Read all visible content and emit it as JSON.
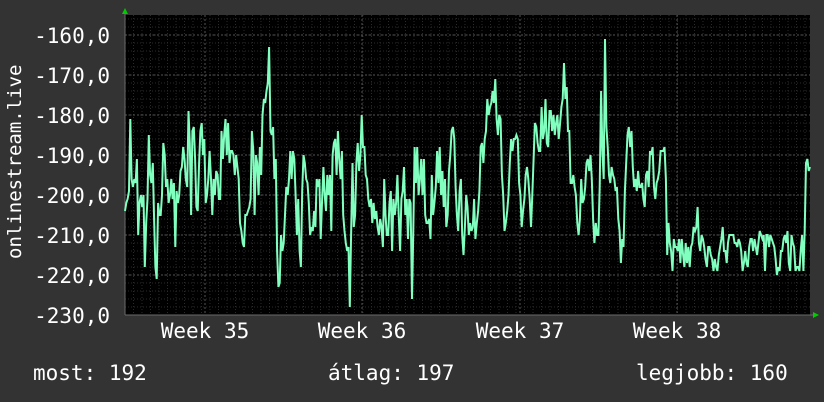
{
  "chart_data": {
    "type": "line",
    "ylabel": "onlinestream.live",
    "ylim": [
      -230,
      -155
    ],
    "y_ticks": [
      "-160,0",
      "-170,0",
      "-180,0",
      "-190,0",
      "-200,0",
      "-210,0",
      "-220,0",
      "-230,0"
    ],
    "x_ticks": [
      "Week 35",
      "Week 36",
      "Week 37",
      "Week 38"
    ],
    "grid": true,
    "colors": {
      "background": "#333333",
      "plot": "#000000",
      "line": "#80ffbf",
      "grid": "#404040",
      "axis_arrow": "#00cc00"
    },
    "series": [
      {
        "values": [
          -204,
          -202,
          -201,
          -199,
          -181,
          -196,
          -198,
          -196,
          -197,
          -191,
          -210,
          -202,
          -200,
          -203,
          -200,
          -218,
          -207,
          -201,
          -185,
          -195,
          -197,
          -192,
          -206,
          -218,
          -221,
          -202,
          -205,
          -205,
          -200,
          -187,
          -190,
          -198,
          -196,
          -202,
          -200,
          -196,
          -201,
          -197,
          -213,
          -199,
          -202,
          -200,
          -194,
          -193,
          -188,
          -191,
          -196,
          -198,
          -179,
          -187,
          -205,
          -184,
          -183,
          -191,
          -203,
          -204,
          -192,
          -184,
          -182,
          -190,
          -186,
          -202,
          -200,
          -196,
          -189,
          -196,
          -205,
          -196,
          -200,
          -194,
          -195,
          -201,
          -201,
          -184,
          -191,
          -185,
          -181,
          -190,
          -182,
          -192,
          -189,
          -189,
          -190,
          -195,
          -190,
          -193,
          -196,
          -207,
          -209,
          -212,
          -213,
          -205,
          -205,
          -204,
          -203,
          -201,
          -184,
          -189,
          -205,
          -190,
          -192,
          -200,
          -188,
          -195,
          -180,
          -176,
          -177,
          -174,
          -172,
          -163,
          -184,
          -185,
          -183,
          -196,
          -191,
          -214,
          -223,
          -222,
          -210,
          -214,
          -212,
          -205,
          -198,
          -200,
          -196,
          -189,
          -196,
          -189,
          -191,
          -200,
          -210,
          -201,
          -214,
          -218,
          -199,
          -190,
          -192,
          -196,
          -197,
          -202,
          -210,
          -208,
          -209,
          -204,
          -208,
          -196,
          -198,
          -196,
          -211,
          -202,
          -193,
          -200,
          -204,
          -195,
          -200,
          -195,
          -209,
          -190,
          -187,
          -186,
          -195,
          -184,
          -191,
          -196,
          -189,
          -205,
          -209,
          -212,
          -214,
          -213,
          -228,
          -210,
          -192,
          -208,
          -205,
          -192,
          -187,
          -194,
          -190,
          -180,
          -188,
          -188,
          -195,
          -196,
          -201,
          -203,
          -201,
          -207,
          -202,
          -206,
          -204,
          -208,
          -210,
          -206,
          -208,
          -213,
          -196,
          -205,
          -210,
          -210,
          -202,
          -199,
          -214,
          -201,
          -205,
          -202,
          -195,
          -205,
          -214,
          -201,
          -199,
          -193,
          -205,
          -201,
          -211,
          -201,
          -202,
          -226,
          -209,
          -188,
          -197,
          -188,
          -200,
          -196,
          -191,
          -200,
          -191,
          -205,
          -207,
          -207,
          -206,
          -211,
          -195,
          -205,
          -202,
          -198,
          -189,
          -197,
          -188,
          -200,
          -194,
          -203,
          -196,
          -208,
          -205,
          -194,
          -190,
          -184,
          -183,
          -186,
          -198,
          -205,
          -209,
          -199,
          -196,
          -210,
          -215,
          -208,
          -200,
          -203,
          -210,
          -207,
          -209,
          -208,
          -201,
          -211,
          -207,
          -204,
          -199,
          -188,
          -187,
          -192,
          -186,
          -184,
          -176,
          -180,
          -178,
          -177,
          -174,
          -177,
          -171,
          -181,
          -185,
          -180,
          -181,
          -195,
          -200,
          -209,
          -207,
          -204,
          -200,
          -192,
          -186,
          -189,
          -186,
          -186,
          -185,
          -186,
          -197,
          -200,
          -208,
          -204,
          -201,
          -195,
          -193,
          -196,
          -201,
          -208,
          -200,
          -191,
          -182,
          -183,
          -187,
          -189,
          -189,
          -178,
          -186,
          -184,
          -176,
          -187,
          -188,
          -179,
          -179,
          -184,
          -180,
          -185,
          -182,
          -180,
          -186,
          -182,
          -178,
          -176,
          -167,
          -176,
          -173,
          -184,
          -184,
          -197,
          -197,
          -195,
          -198,
          -200,
          -207,
          -210,
          -206,
          -196,
          -202,
          -201,
          -198,
          -192,
          -191,
          -194,
          -190,
          -196,
          -206,
          -212,
          -207,
          -210,
          -210,
          -198,
          -174,
          -189,
          -196,
          -161,
          -183,
          -188,
          -195,
          -197,
          -193,
          -195,
          -196,
          -199,
          -198,
          -206,
          -209,
          -217,
          -211,
          -213,
          -199,
          -192,
          -185,
          -183,
          -188,
          -184,
          -193,
          -198,
          -196,
          -199,
          -194,
          -198,
          -198,
          -197,
          -201,
          -203,
          -195,
          -194,
          -198,
          -189,
          -190,
          -188,
          -198,
          -201,
          -197,
          -196,
          -194,
          -189,
          -189,
          -189,
          -188,
          -196,
          -215,
          -207,
          -212,
          -214,
          -219,
          -211,
          -213,
          -213,
          -214,
          -211,
          -217,
          -211,
          -215,
          -218,
          -212,
          -217,
          -213,
          -218,
          -213,
          -212,
          -208,
          -209,
          -208,
          -203,
          -212,
          -214,
          -210,
          -211,
          -213,
          -216,
          -218,
          -213,
          -213,
          -215,
          -216,
          -219,
          -216,
          -218,
          -219,
          -215,
          -213,
          -211,
          -208,
          -214,
          -214,
          -217,
          -212,
          -210,
          -210,
          -210,
          -210,
          -212,
          -212,
          -213,
          -211,
          -212,
          -214,
          -219,
          -217,
          -214,
          -217,
          -218,
          -213,
          -211,
          -211,
          -214,
          -211,
          -213,
          -215,
          -212,
          -209,
          -210,
          -211,
          -210,
          -219,
          -210,
          -210,
          -213,
          -210,
          -211,
          -212,
          -213,
          -216,
          -220,
          -218,
          -219,
          -214,
          -214,
          -211,
          -210,
          -212,
          -209,
          -217,
          -219,
          -210,
          -212,
          -213,
          -219,
          -218,
          -218,
          -219,
          -214,
          -210,
          -219,
          -209,
          -192,
          -191,
          -194,
          -193
        ]
      }
    ]
  },
  "stats": {
    "now": "most: 192",
    "avg": "átlag: 197",
    "best": "legjobb: 160"
  }
}
